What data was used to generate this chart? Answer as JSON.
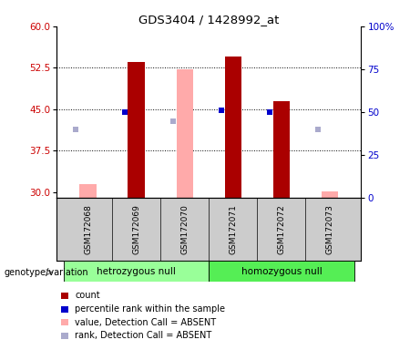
{
  "title": "GDS3404 / 1428992_at",
  "samples": [
    "GSM172068",
    "GSM172069",
    "GSM172070",
    "GSM172071",
    "GSM172072",
    "GSM172073"
  ],
  "ylim_left": [
    29,
    60
  ],
  "ylim_right": [
    0,
    100
  ],
  "yticks_left": [
    30,
    37.5,
    45,
    52.5,
    60
  ],
  "yticks_right": [
    0,
    25,
    50,
    75,
    100
  ],
  "bar_values": [
    31.5,
    53.5,
    52.2,
    54.5,
    46.5,
    30.2
  ],
  "bar_absent": [
    true,
    false,
    true,
    false,
    false,
    true
  ],
  "rank_values": [
    40.0,
    50.0,
    44.5,
    51.0,
    50.0,
    40.0
  ],
  "rank_absent": [
    true,
    false,
    true,
    false,
    false,
    true
  ],
  "bar_color_present": "#aa0000",
  "bar_color_absent": "#ffaaaa",
  "rank_color_present": "#0000cc",
  "rank_color_absent": "#aaaacc",
  "bar_bottom": 29.0,
  "group1_label": "hetrozygous null",
  "group1_samples": [
    0,
    1,
    2
  ],
  "group2_label": "homozygous null",
  "group2_samples": [
    3,
    4,
    5
  ],
  "group_color1": "#99ff99",
  "group_color2": "#55ee55",
  "genotype_label": "genotype/variation",
  "legend_items": [
    {
      "color": "#aa0000",
      "label": "count"
    },
    {
      "color": "#0000cc",
      "label": "percentile rank within the sample"
    },
    {
      "color": "#ffaaaa",
      "label": "value, Detection Call = ABSENT"
    },
    {
      "color": "#aaaacc",
      "label": "rank, Detection Call = ABSENT"
    }
  ],
  "bg_color": "#ffffff",
  "label_area_color": "#cccccc",
  "bar_width": 0.35
}
